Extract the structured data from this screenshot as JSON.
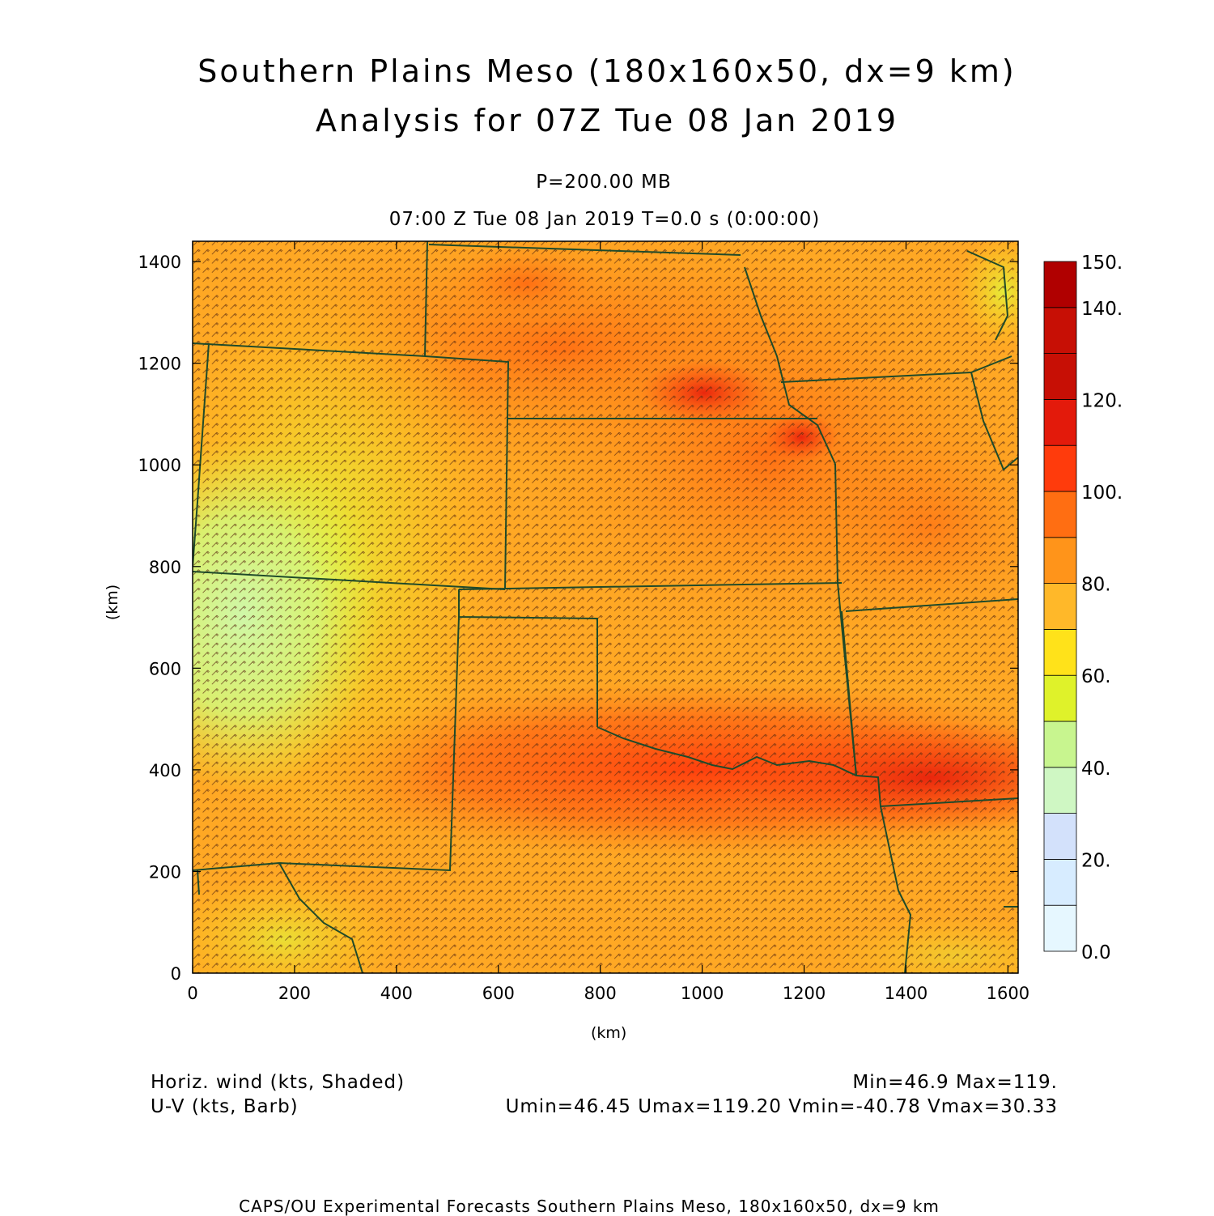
{
  "header": {
    "title_line1": "Southern Plains Meso (180x160x50, dx=9 km)",
    "title_line2": "Analysis for 07Z Tue 08 Jan 2019",
    "level": "P=200.00 MB",
    "time_line": "07:00 Z Tue 08 Jan 2019    T=0.0 s (0:00:00)"
  },
  "axes": {
    "xlabel": "(km)",
    "ylabel": "(km)",
    "x_ticks": [
      "0",
      "200",
      "400",
      "600",
      "800",
      "1000",
      "1200",
      "1400",
      "1600"
    ],
    "y_ticks": [
      "0",
      "200",
      "400",
      "600",
      "800",
      "1000",
      "1200",
      "1400"
    ]
  },
  "colorbar": {
    "labels": [
      "0.0",
      "20.",
      "40.",
      "60.",
      "80.",
      "100.",
      "120.",
      "140.",
      "150."
    ],
    "colors": [
      "#e6f7ff",
      "#d7ecff",
      "#d3e1fb",
      "#cff7c3",
      "#c8f58f",
      "#dff22a",
      "#ffe21a",
      "#ffb829",
      "#ff941a",
      "#ff6e12",
      "#ff3b0c",
      "#e31a0b",
      "#c70f05",
      "#b00000"
    ]
  },
  "footer": {
    "field1": "Horiz. wind (kts, Shaded)",
    "field2": "U-V (kts, Barb)",
    "minmax": "Min=46.9 Max=119.",
    "uv_stats": "Umin=46.45 Umax=119.20 Vmin=-40.78 Vmax=30.33",
    "credit": "CAPS/OU Experimental Forecasts  Southern Plains Meso, 180x160x50, dx=9 km"
  }
}
